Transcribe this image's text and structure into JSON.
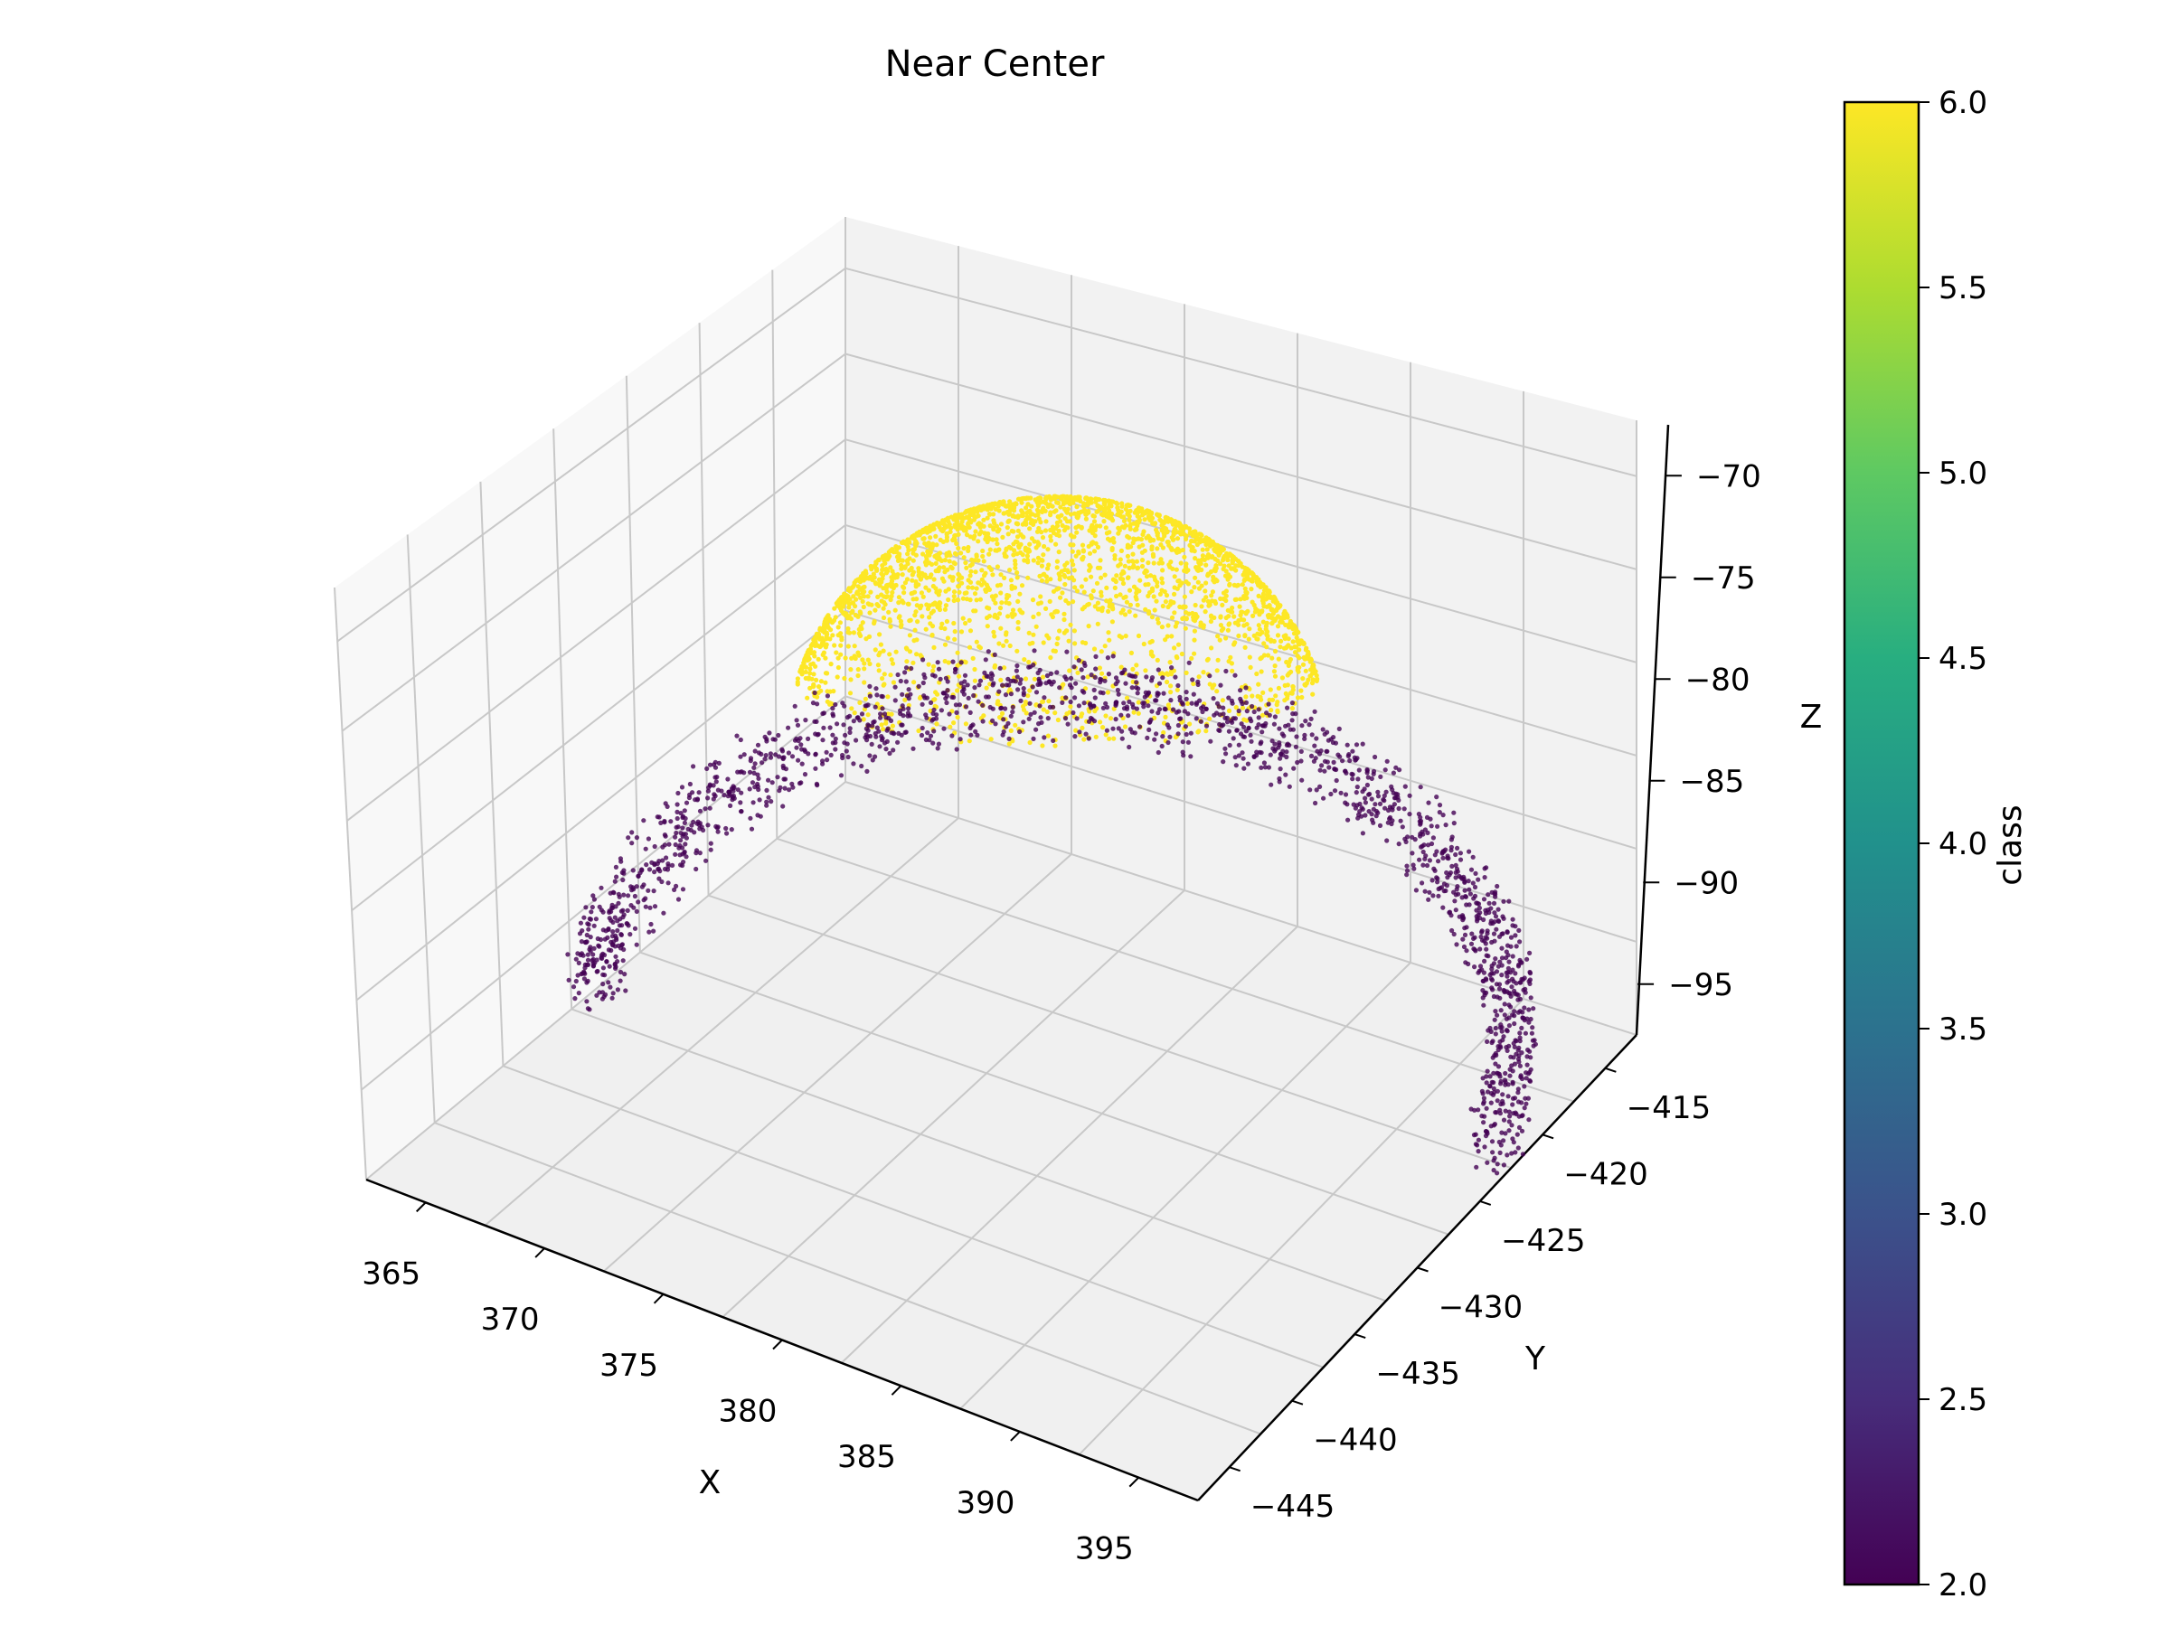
{
  "chart_data": {
    "type": "scatter",
    "title": "Near Center",
    "xlabel": "X",
    "ylabel": "Y",
    "zlabel": "Z",
    "xlim": [
      362,
      397
    ],
    "ylim": [
      -448,
      -410
    ],
    "zlim": [
      -98,
      -65
    ],
    "x_ticks": [
      "365",
      "370",
      "375",
      "380",
      "385",
      "390",
      "395"
    ],
    "y_ticks": [
      "−445",
      "−440",
      "−435",
      "−430",
      "−425",
      "−420",
      "−415"
    ],
    "z_ticks": [
      "−95",
      "−90",
      "−85",
      "−80",
      "−75",
      "−70"
    ],
    "colorbar": {
      "label": "class",
      "colormap": "viridis",
      "range": [
        2.0,
        6.0
      ],
      "ticks": [
        "2.0",
        "2.5",
        "3.0",
        "3.5",
        "4.0",
        "4.5",
        "5.0",
        "5.5",
        "6.0"
      ]
    },
    "series": [
      {
        "value": 6,
        "color": "#fde725",
        "shape": "dome",
        "center": {
          "x": 380,
          "y": -428,
          "z": -83
        },
        "radius": 14,
        "cap_height": 12
      },
      {
        "value": 2,
        "color": "#440154",
        "shape": "curved band (horseshoe)",
        "center": {
          "x": 380,
          "y": -428,
          "z": -92
        },
        "radius": 17
      }
    ],
    "grid": true
  }
}
